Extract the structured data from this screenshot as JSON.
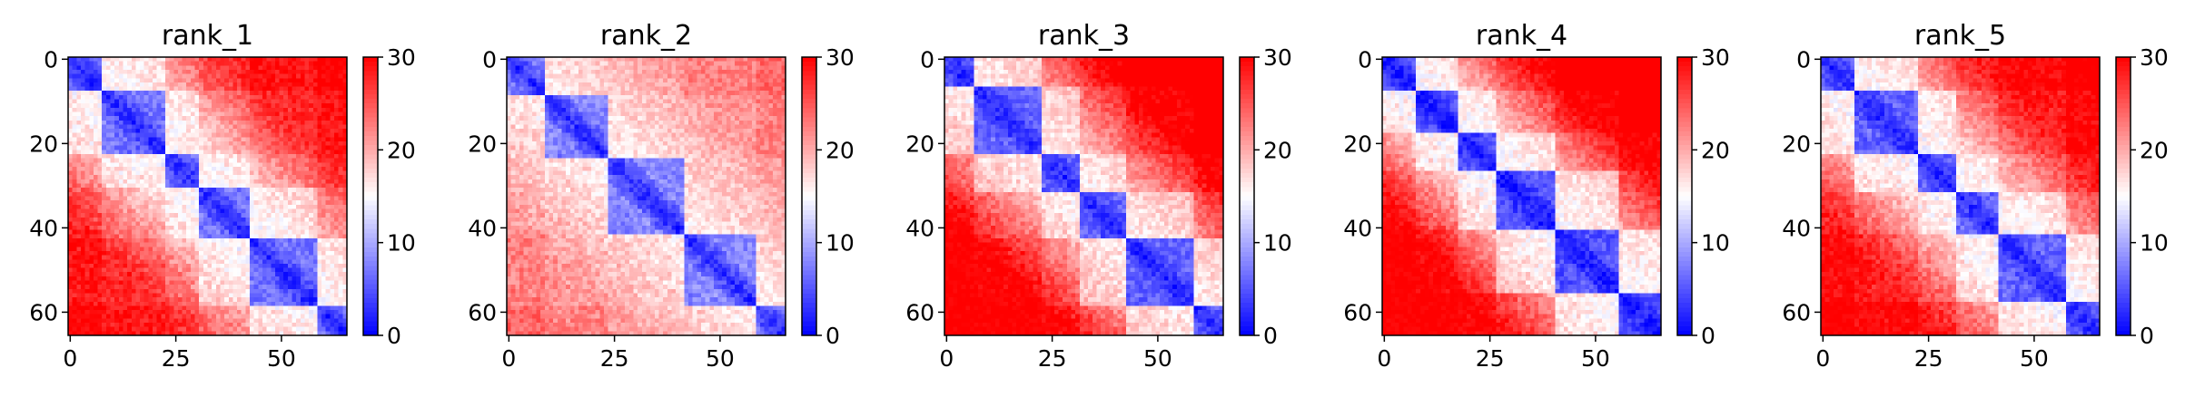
{
  "figure": {
    "colormap": [
      "#0000ff",
      "#ffffff",
      "#ff0000"
    ],
    "vmin": 0,
    "vmax": 30
  },
  "chart_data": [
    {
      "type": "heatmap",
      "title": "rank_1",
      "matrix_size": 66,
      "xticks": [
        "0",
        "25",
        "50"
      ],
      "yticks": [
        "0",
        "20",
        "40",
        "60"
      ],
      "xlim": [
        0,
        65
      ],
      "ylim": [
        0,
        65
      ],
      "colorbar": {
        "ticks": [
          "0",
          "10",
          "20",
          "30"
        ],
        "range": [
          0,
          30
        ]
      },
      "domains": [
        [
          0,
          7
        ],
        [
          8,
          22
        ],
        [
          23,
          30
        ],
        [
          31,
          42
        ],
        [
          43,
          58
        ],
        [
          59,
          65
        ]
      ],
      "approx_values": {
        "diagonal": 2,
        "within_domain": 7,
        "adjacent_domains": 14,
        "far_corner_typical": 26,
        "far_corner_max": 30
      }
    },
    {
      "type": "heatmap",
      "title": "rank_2",
      "matrix_size": 66,
      "xticks": [
        "0",
        "25",
        "50"
      ],
      "yticks": [
        "0",
        "20",
        "40",
        "60"
      ],
      "xlim": [
        0,
        65
      ],
      "ylim": [
        0,
        65
      ],
      "colorbar": {
        "ticks": [
          "0",
          "10",
          "20",
          "30"
        ],
        "range": [
          0,
          30
        ]
      },
      "domains": [
        [
          0,
          8
        ],
        [
          9,
          23
        ],
        [
          24,
          41
        ],
        [
          42,
          58
        ],
        [
          59,
          65
        ]
      ],
      "approx_values": {
        "diagonal": 2,
        "within_domain": 8,
        "adjacent_domains": 15,
        "far_corner_typical": 21,
        "far_corner_max": 28
      }
    },
    {
      "type": "heatmap",
      "title": "rank_3",
      "matrix_size": 66,
      "xticks": [
        "0",
        "25",
        "50"
      ],
      "yticks": [
        "0",
        "20",
        "40",
        "60"
      ],
      "xlim": [
        0,
        65
      ],
      "ylim": [
        0,
        65
      ],
      "colorbar": {
        "ticks": [
          "0",
          "10",
          "20",
          "30"
        ],
        "range": [
          0,
          30
        ]
      },
      "domains": [
        [
          0,
          6
        ],
        [
          7,
          22
        ],
        [
          23,
          31
        ],
        [
          32,
          42
        ],
        [
          43,
          58
        ],
        [
          59,
          65
        ]
      ],
      "approx_values": {
        "diagonal": 2,
        "within_domain": 6,
        "adjacent_domains": 15,
        "far_corner_typical": 29,
        "far_corner_max": 30
      }
    },
    {
      "type": "heatmap",
      "title": "rank_4",
      "matrix_size": 66,
      "xticks": [
        "0",
        "25",
        "50"
      ],
      "yticks": [
        "0",
        "20",
        "40",
        "60"
      ],
      "xlim": [
        0,
        65
      ],
      "ylim": [
        0,
        65
      ],
      "colorbar": {
        "ticks": [
          "0",
          "10",
          "20",
          "30"
        ],
        "range": [
          0,
          30
        ]
      },
      "domains": [
        [
          0,
          7
        ],
        [
          8,
          17
        ],
        [
          18,
          26
        ],
        [
          27,
          40
        ],
        [
          41,
          55
        ],
        [
          56,
          65
        ]
      ],
      "approx_values": {
        "diagonal": 1,
        "within_domain": 5,
        "adjacent_domains": 14,
        "far_corner_typical": 29,
        "far_corner_max": 30
      }
    },
    {
      "type": "heatmap",
      "title": "rank_5",
      "matrix_size": 66,
      "xticks": [
        "0",
        "25",
        "50"
      ],
      "yticks": [
        "0",
        "20",
        "40",
        "60"
      ],
      "xlim": [
        0,
        65
      ],
      "ylim": [
        0,
        65
      ],
      "colorbar": {
        "ticks": [
          "0",
          "10",
          "20",
          "30"
        ],
        "range": [
          0,
          30
        ]
      },
      "domains": [
        [
          0,
          7
        ],
        [
          8,
          22
        ],
        [
          23,
          31
        ],
        [
          32,
          41
        ],
        [
          42,
          57
        ],
        [
          58,
          65
        ]
      ],
      "approx_values": {
        "diagonal": 2,
        "within_domain": 6,
        "adjacent_domains": 14,
        "far_corner_typical": 27,
        "far_corner_max": 30
      }
    }
  ]
}
